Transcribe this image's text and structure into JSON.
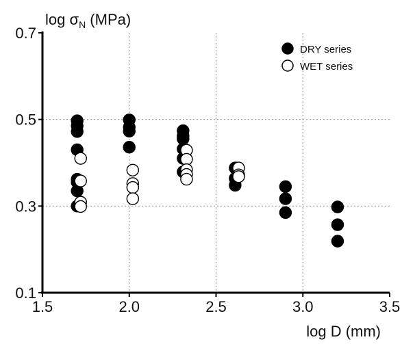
{
  "chart_data": {
    "type": "scatter",
    "ylabel_main": "log σ",
    "ylabel_sub": "N",
    "ylabel_unit": " (MPa)",
    "xlabel": "log D (mm)",
    "xlim": [
      1.5,
      3.5
    ],
    "ylim": [
      0.1,
      0.7
    ],
    "x_ticks": [
      1.5,
      2.0,
      2.5,
      3.0,
      3.5
    ],
    "x_tick_labels": [
      "1.5",
      "2.0",
      "2.5",
      "3.0",
      "3.5"
    ],
    "y_ticks": [
      0.1,
      0.3,
      0.5,
      0.7
    ],
    "y_tick_labels": [
      "0.1",
      "0.3",
      "0.5",
      "0.7"
    ],
    "grid": true,
    "legend_position": "top-right",
    "series": [
      {
        "name": "DRY series",
        "marker": "filled-circle",
        "color": "#000000",
        "points": [
          [
            1.7,
            0.497
          ],
          [
            1.7,
            0.485
          ],
          [
            1.7,
            0.472
          ],
          [
            1.7,
            0.43
          ],
          [
            1.7,
            0.362
          ],
          [
            1.7,
            0.355
          ],
          [
            1.7,
            0.335
          ],
          [
            1.7,
            0.3
          ],
          [
            2.0,
            0.499
          ],
          [
            2.0,
            0.482
          ],
          [
            2.0,
            0.473
          ],
          [
            2.0,
            0.436
          ],
          [
            2.31,
            0.474
          ],
          [
            2.31,
            0.462
          ],
          [
            2.31,
            0.455
          ],
          [
            2.31,
            0.432
          ],
          [
            2.31,
            0.41
          ],
          [
            2.31,
            0.379
          ],
          [
            2.61,
            0.388
          ],
          [
            2.61,
            0.364
          ],
          [
            2.61,
            0.348
          ],
          [
            2.9,
            0.345
          ],
          [
            2.9,
            0.317
          ],
          [
            2.9,
            0.285
          ],
          [
            3.2,
            0.298
          ],
          [
            3.2,
            0.257
          ],
          [
            3.2,
            0.219
          ]
        ]
      },
      {
        "name": "WET series",
        "marker": "open-circle",
        "color": "#ffffff",
        "points": [
          [
            1.72,
            0.41
          ],
          [
            1.72,
            0.358
          ],
          [
            1.72,
            0.309
          ],
          [
            1.72,
            0.299
          ],
          [
            2.02,
            0.383
          ],
          [
            2.02,
            0.352
          ],
          [
            2.02,
            0.343
          ],
          [
            2.02,
            0.317
          ],
          [
            2.33,
            0.429
          ],
          [
            2.33,
            0.408
          ],
          [
            2.33,
            0.384
          ],
          [
            2.33,
            0.373
          ],
          [
            2.33,
            0.362
          ],
          [
            2.63,
            0.388
          ],
          [
            2.63,
            0.372
          ],
          [
            2.63,
            0.368
          ]
        ]
      }
    ]
  }
}
